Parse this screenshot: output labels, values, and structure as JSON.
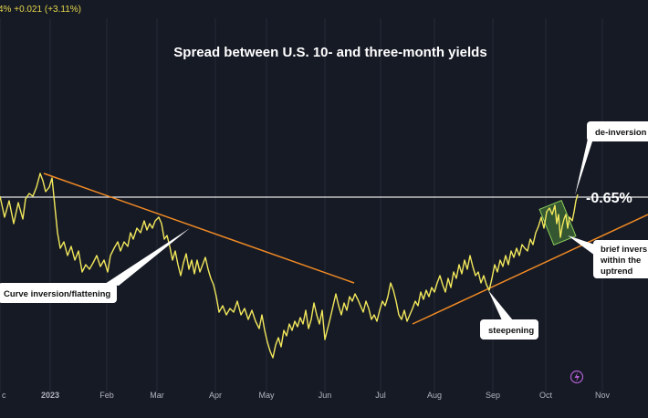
{
  "header": {
    "ticker_text": "4%  +0.021 (+3.11%)"
  },
  "colors": {
    "background": "#161a25",
    "line": "#f2e85c",
    "trendline": "#f08a24",
    "level_line": "#e8e8e8",
    "highlight_fill": "#4e8a3c",
    "highlight_border": "#8fd15c",
    "callout_bg": "#ffffff",
    "icon": "#b05fd0"
  },
  "chart_data": {
    "type": "line",
    "title": "Spread between U.S. 10- and three-month yields",
    "xlabel": "",
    "ylabel": "",
    "x_ticks": [
      "c",
      "2023",
      "Feb",
      "Mar",
      "Apr",
      "May",
      "Jun",
      "Jul",
      "Aug",
      "Sep",
      "Oct",
      "Nov"
    ],
    "y_axis_visible": false,
    "grid": true,
    "reference_line": {
      "label": "-0.65%",
      "value": -0.65
    },
    "series": [
      {
        "values": [
          [
            0,
            215
          ],
          [
            5,
            238
          ],
          [
            10,
            220
          ],
          [
            15,
            245
          ],
          [
            20,
            222
          ],
          [
            25,
            240
          ],
          [
            28,
            218
          ],
          [
            32,
            212
          ],
          [
            36,
            215
          ],
          [
            40,
            205
          ],
          [
            44,
            190
          ],
          [
            47,
            198
          ],
          [
            50,
            210
          ],
          [
            54,
            205
          ],
          [
            57,
            195
          ],
          [
            60,
            225
          ],
          [
            63,
            255
          ],
          [
            66,
            272
          ],
          [
            70,
            265
          ],
          [
            74,
            280
          ],
          [
            78,
            270
          ],
          [
            82,
            285
          ],
          [
            86,
            275
          ],
          [
            90,
            298
          ],
          [
            94,
            290
          ],
          [
            98,
            295
          ],
          [
            102,
            288
          ],
          [
            106,
            280
          ],
          [
            110,
            292
          ],
          [
            114,
            285
          ],
          [
            118,
            298
          ],
          [
            121,
            280
          ],
          [
            125,
            272
          ],
          [
            129,
            265
          ],
          [
            132,
            275
          ],
          [
            136,
            265
          ],
          [
            140,
            270
          ],
          [
            143,
            255
          ],
          [
            146,
            262
          ],
          [
            150,
            250
          ],
          [
            154,
            255
          ],
          [
            158,
            242
          ],
          [
            161,
            252
          ],
          [
            164,
            245
          ],
          [
            167,
            250
          ],
          [
            170,
            242
          ],
          [
            174,
            238
          ],
          [
            177,
            245
          ],
          [
            180,
            262
          ],
          [
            183,
            258
          ],
          [
            186,
            270
          ],
          [
            189,
            285
          ],
          [
            192,
            275
          ],
          [
            195,
            290
          ],
          [
            198,
            302
          ],
          [
            201,
            288
          ],
          [
            204,
            278
          ],
          [
            207,
            295
          ],
          [
            210,
            285
          ],
          [
            213,
            300
          ],
          [
            216,
            285
          ],
          [
            219,
            298
          ],
          [
            222,
            290
          ],
          [
            225,
            282
          ],
          [
            228,
            295
          ],
          [
            231,
            305
          ],
          [
            234,
            312
          ],
          [
            237,
            325
          ],
          [
            240,
            342
          ],
          [
            244,
            335
          ],
          [
            248,
            345
          ],
          [
            252,
            338
          ],
          [
            256,
            342
          ],
          [
            260,
            330
          ],
          [
            264,
            345
          ],
          [
            268,
            338
          ],
          [
            272,
            350
          ],
          [
            276,
            340
          ],
          [
            280,
            352
          ],
          [
            284,
            360
          ],
          [
            287,
            345
          ],
          [
            290,
            362
          ],
          [
            293,
            375
          ],
          [
            296,
            385
          ],
          [
            299,
            392
          ],
          [
            302,
            378
          ],
          [
            305,
            370
          ],
          [
            308,
            380
          ],
          [
            311,
            362
          ],
          [
            314,
            368
          ],
          [
            317,
            355
          ],
          [
            320,
            362
          ],
          [
            323,
            352
          ],
          [
            326,
            358
          ],
          [
            329,
            348
          ],
          [
            332,
            355
          ],
          [
            335,
            340
          ],
          [
            338,
            360
          ],
          [
            341,
            350
          ],
          [
            344,
            332
          ],
          [
            347,
            345
          ],
          [
            350,
            355
          ],
          [
            353,
            340
          ],
          [
            356,
            372
          ],
          [
            359,
            360
          ],
          [
            362,
            348
          ],
          [
            365,
            335
          ],
          [
            368,
            322
          ],
          [
            371,
            335
          ],
          [
            374,
            345
          ],
          [
            377,
            332
          ],
          [
            380,
            340
          ],
          [
            383,
            325
          ],
          [
            386,
            330
          ],
          [
            389,
            322
          ],
          [
            392,
            328
          ],
          [
            395,
            335
          ],
          [
            398,
            342
          ],
          [
            401,
            330
          ],
          [
            404,
            338
          ],
          [
            407,
            350
          ],
          [
            410,
            345
          ],
          [
            413,
            352
          ],
          [
            416,
            340
          ],
          [
            419,
            330
          ],
          [
            422,
            335
          ],
          [
            425,
            325
          ],
          [
            428,
            310
          ],
          [
            431,
            318
          ],
          [
            434,
            330
          ],
          [
            437,
            345
          ],
          [
            440,
            350
          ],
          [
            443,
            340
          ],
          [
            446,
            352
          ],
          [
            449,
            345
          ],
          [
            452,
            338
          ],
          [
            455,
            330
          ],
          [
            458,
            335
          ],
          [
            461,
            320
          ],
          [
            464,
            328
          ],
          [
            467,
            318
          ],
          [
            470,
            325
          ],
          [
            473,
            315
          ],
          [
            476,
            320
          ],
          [
            479,
            310
          ],
          [
            482,
            302
          ],
          [
            485,
            312
          ],
          [
            488,
            320
          ],
          [
            491,
            305
          ],
          [
            494,
            315
          ],
          [
            497,
            298
          ],
          [
            500,
            305
          ],
          [
            503,
            290
          ],
          [
            506,
            300
          ],
          [
            509,
            285
          ],
          [
            512,
            295
          ],
          [
            515,
            280
          ],
          [
            518,
            292
          ],
          [
            521,
            302
          ],
          [
            524,
            298
          ],
          [
            527,
            310
          ],
          [
            530,
            302
          ],
          [
            533,
            312
          ],
          [
            536,
            318
          ],
          [
            539,
            305
          ],
          [
            542,
            290
          ],
          [
            545,
            298
          ],
          [
            548,
            285
          ],
          [
            551,
            292
          ],
          [
            554,
            280
          ],
          [
            557,
            290
          ],
          [
            560,
            275
          ],
          [
            563,
            282
          ],
          [
            566,
            272
          ],
          [
            569,
            280
          ],
          [
            572,
            268
          ],
          [
            575,
            272
          ],
          [
            578,
            275
          ],
          [
            581,
            262
          ],
          [
            584,
            268
          ],
          [
            587,
            255
          ],
          [
            590,
            248
          ],
          [
            593,
            238
          ],
          [
            596,
            250
          ],
          [
            599,
            232
          ],
          [
            602,
            228
          ],
          [
            605,
            235
          ],
          [
            608,
            225
          ],
          [
            610,
            245
          ],
          [
            612,
            235
          ],
          [
            614,
            260
          ],
          [
            616,
            248
          ],
          [
            618,
            240
          ],
          [
            620,
            235
          ],
          [
            622,
            250
          ],
          [
            624,
            238
          ],
          [
            627,
            242
          ],
          [
            629,
            232
          ],
          [
            631,
            220
          ],
          [
            633,
            213
          ]
        ]
      }
    ]
  },
  "annotations": {
    "curve_inversion": "Curve inversion/flattening",
    "steepening": "steepening",
    "de_inversion": "de-inversion",
    "brief_inversion_1": "brief invers",
    "brief_inversion_2": "within the",
    "brief_inversion_3": "uptrend"
  },
  "icons": {
    "bottom_badge": "lightning-icon"
  }
}
